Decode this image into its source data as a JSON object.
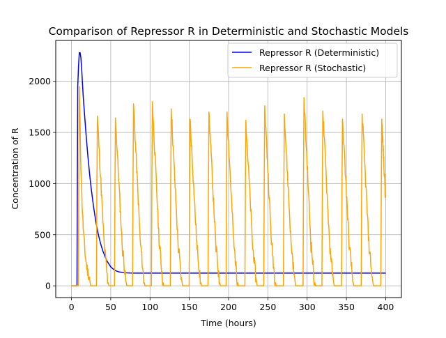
{
  "chart_data": {
    "type": "line",
    "title": "Comparison of Repressor R in Deterministic and Stochastic Models",
    "xlabel": "Time (hours)",
    "ylabel": "Concentration of R",
    "xlim": [
      -20,
      420
    ],
    "ylim": [
      -115,
      2400
    ],
    "xticks": [
      0,
      50,
      100,
      150,
      200,
      250,
      300,
      350,
      400
    ],
    "yticks": [
      0,
      500,
      1000,
      1500,
      2000
    ],
    "grid": true,
    "legend_position": "top-right",
    "series": [
      {
        "name": "Repressor R (Deterministic)",
        "color": "#0000ff",
        "x": [
          0,
          5,
          7,
          8,
          9,
          10,
          11,
          12,
          13,
          14,
          15,
          17,
          19,
          21,
          23,
          25,
          28,
          31,
          34,
          37,
          40,
          45,
          50,
          55,
          60,
          65,
          70,
          75,
          80,
          85,
          90,
          100,
          150,
          200,
          250,
          300,
          350,
          400
        ],
        "y": [
          0,
          0,
          0,
          1950,
          2150,
          2280,
          2280,
          2230,
          2120,
          1980,
          1850,
          1640,
          1440,
          1260,
          1100,
          960,
          780,
          630,
          510,
          415,
          340,
          245,
          185,
          152,
          137,
          130,
          127,
          125,
          124,
          124,
          124,
          124,
          124,
          124,
          124,
          124,
          124,
          124
        ]
      },
      {
        "name": "Repressor R (Stochastic)",
        "color": "#ffa500",
        "peaks": [
          {
            "t": 10,
            "peak": 1950
          },
          {
            "t": 33,
            "peak": 1660
          },
          {
            "t": 56,
            "peak": 1640
          },
          {
            "t": 79,
            "peak": 1780
          },
          {
            "t": 103,
            "peak": 1800
          },
          {
            "t": 127,
            "peak": 1730
          },
          {
            "t": 151,
            "peak": 1630
          },
          {
            "t": 175,
            "peak": 1700
          },
          {
            "t": 198,
            "peak": 1700
          },
          {
            "t": 222,
            "peak": 1620
          },
          {
            "t": 246,
            "peak": 1760
          },
          {
            "t": 271,
            "peak": 1680
          },
          {
            "t": 296,
            "peak": 1840
          },
          {
            "t": 320,
            "peak": 1710
          },
          {
            "t": 345,
            "peak": 1630
          },
          {
            "t": 370,
            "peak": 1680
          },
          {
            "t": 395,
            "peak": 1630
          }
        ],
        "end_value": 820
      }
    ]
  }
}
